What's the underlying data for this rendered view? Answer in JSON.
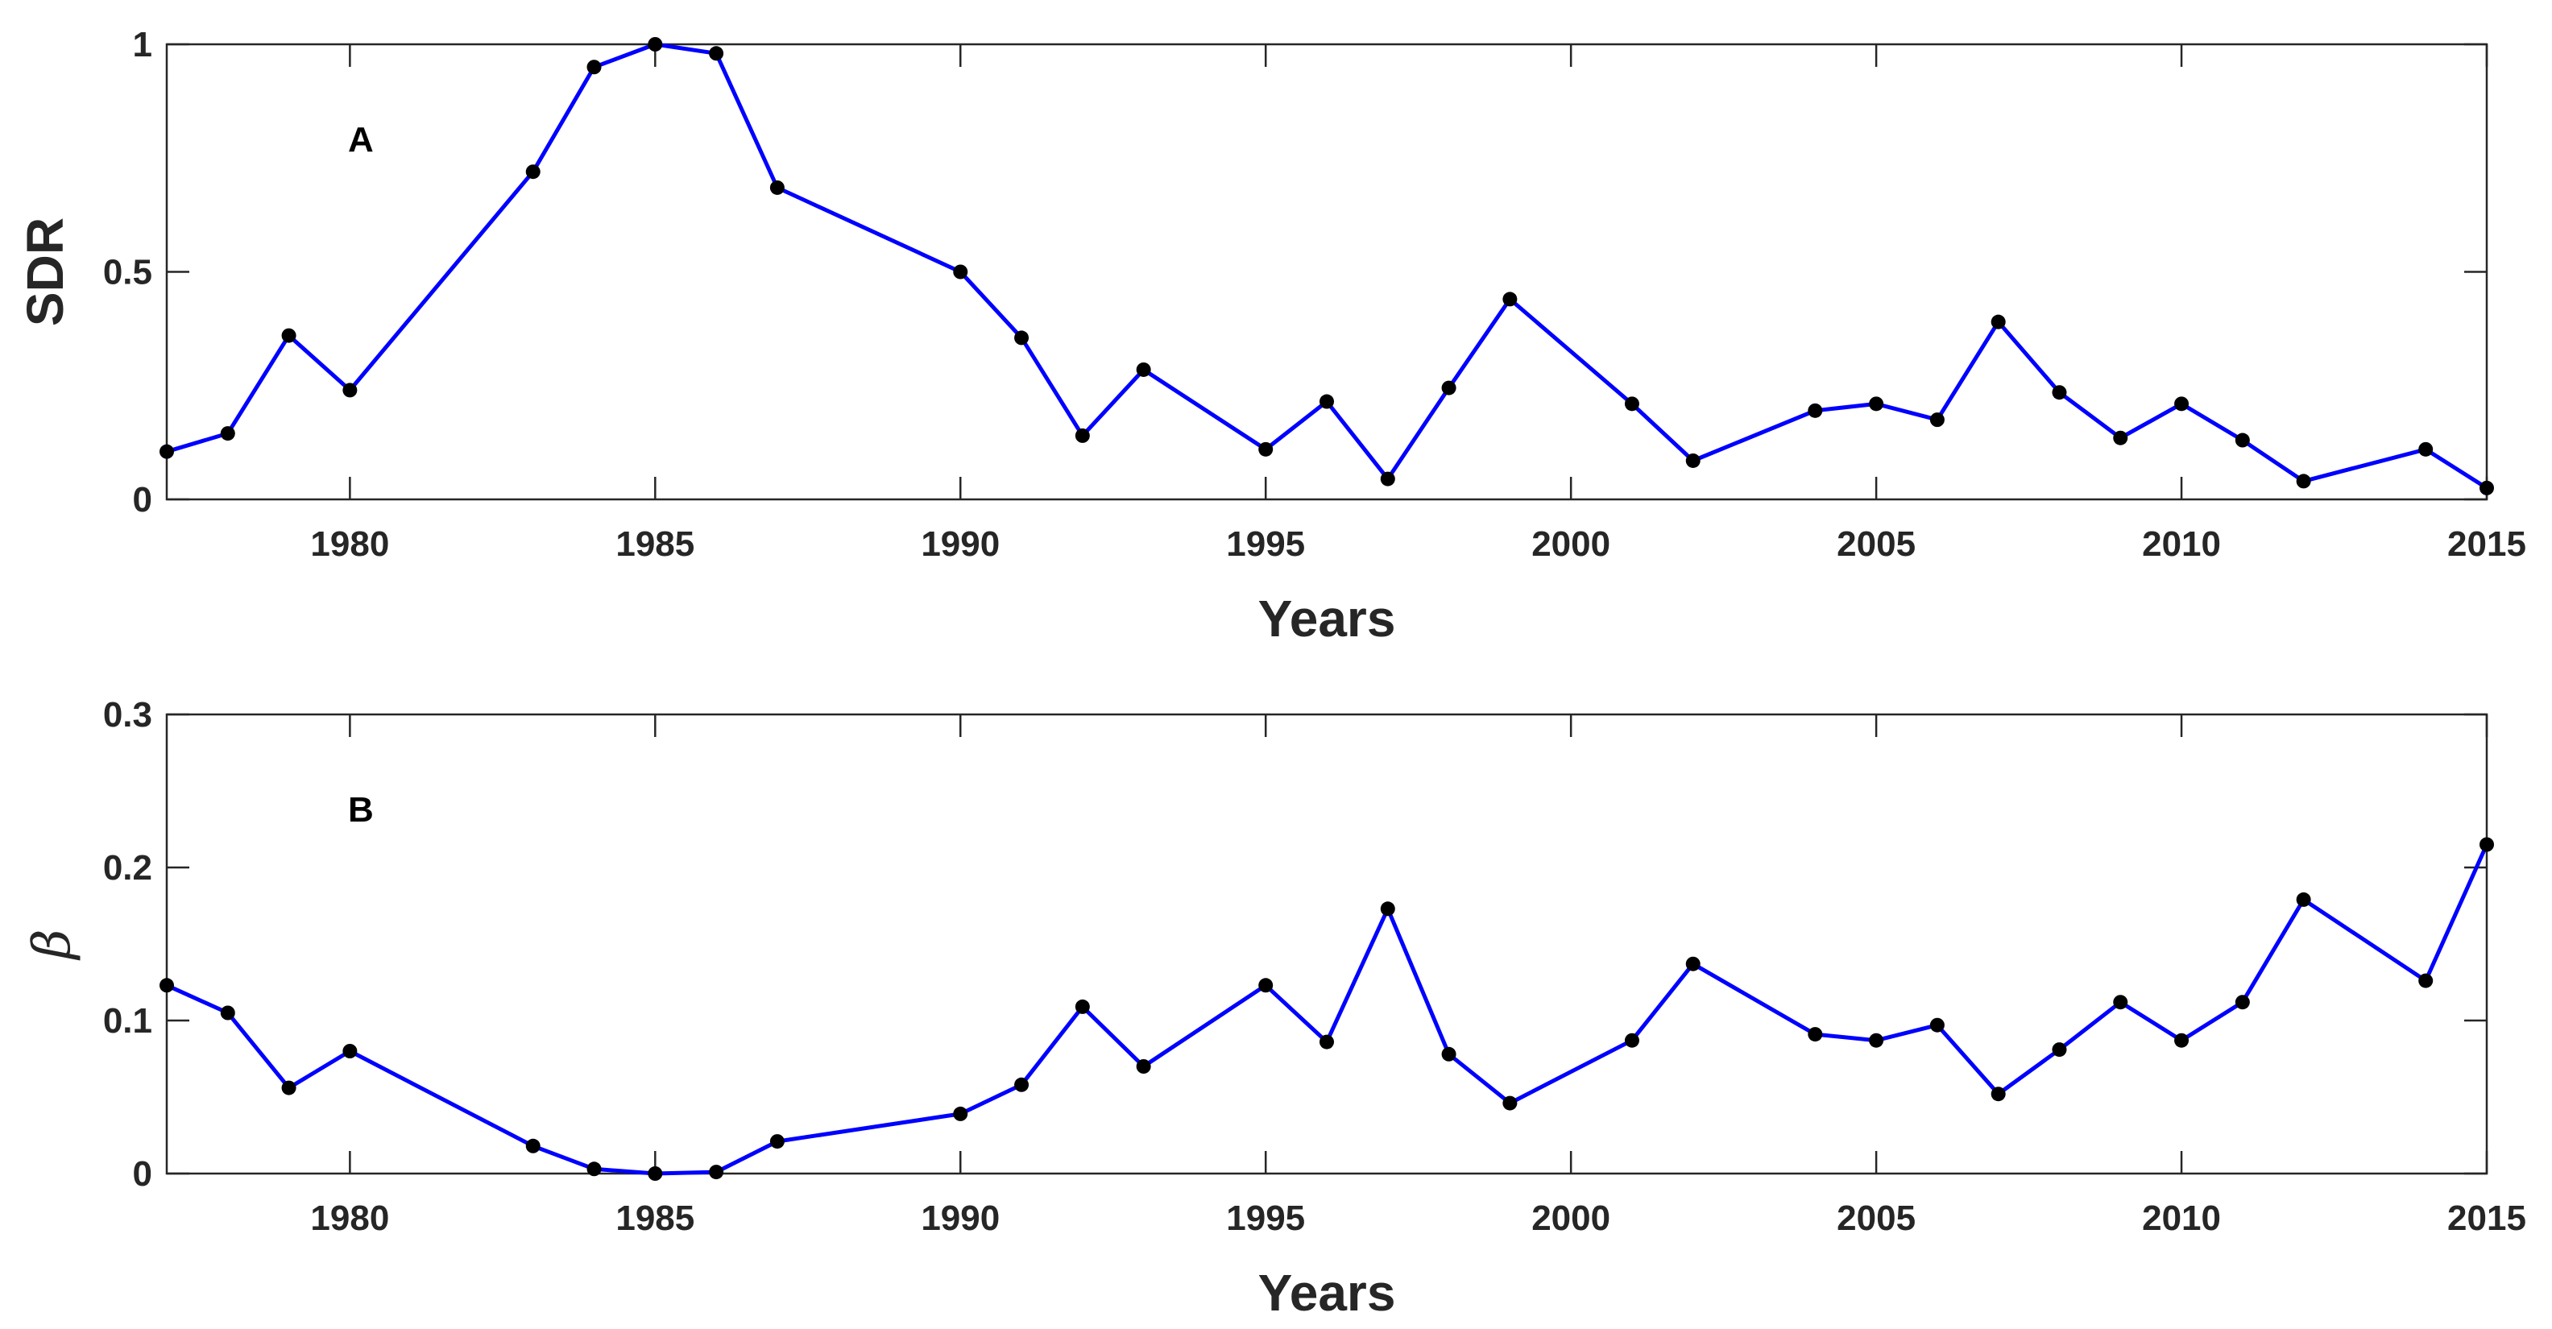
{
  "chart_data": [
    {
      "type": "line",
      "panel_label": "A",
      "xlabel": "Years",
      "ylabel": "SDR",
      "xlim": [
        1977,
        2015
      ],
      "ylim": [
        0,
        1
      ],
      "xticks": [
        1980,
        1985,
        1990,
        1995,
        2000,
        2005,
        2010,
        2015
      ],
      "yticks": [
        0,
        0.5,
        1
      ],
      "ytick_labels": [
        "0",
        "0.5",
        "1"
      ],
      "line_color": "#0000ff",
      "marker_color": "#000000",
      "grid": false,
      "series": [
        {
          "x": [
            1977,
            1978,
            1979,
            1980,
            1983,
            1984,
            1985,
            1986,
            1987,
            1990,
            1991,
            1992,
            1993,
            1995,
            1996,
            1997,
            1998,
            1999,
            2001,
            2002,
            2004,
            2005,
            2006,
            2007,
            2008,
            2009,
            2010,
            2011,
            2012,
            2014,
            2015
          ],
          "values": [
            0.105,
            0.145,
            0.36,
            0.24,
            0.72,
            0.95,
            1.0,
            0.98,
            0.685,
            0.5,
            0.355,
            0.14,
            0.285,
            0.11,
            0.215,
            0.045,
            0.245,
            0.44,
            0.21,
            0.085,
            0.195,
            0.21,
            0.175,
            0.39,
            0.235,
            0.135,
            0.21,
            0.13,
            0.04,
            0.11,
            0.025
          ]
        }
      ]
    },
    {
      "type": "line",
      "panel_label": "B",
      "xlabel": "Years",
      "ylabel": "β",
      "xlim": [
        1977,
        2015
      ],
      "ylim": [
        0,
        0.3
      ],
      "xticks": [
        1980,
        1985,
        1990,
        1995,
        2000,
        2005,
        2010,
        2015
      ],
      "yticks": [
        0,
        0.1,
        0.2,
        0.3
      ],
      "ytick_labels": [
        "0",
        "0.1",
        "0.2",
        "0.3"
      ],
      "line_color": "#0000ff",
      "marker_color": "#000000",
      "grid": false,
      "series": [
        {
          "x": [
            1977,
            1978,
            1979,
            1980,
            1983,
            1984,
            1985,
            1986,
            1987,
            1990,
            1991,
            1992,
            1993,
            1995,
            1996,
            1997,
            1998,
            1999,
            2001,
            2002,
            2004,
            2005,
            2006,
            2007,
            2008,
            2009,
            2010,
            2011,
            2012,
            2014,
            2015
          ],
          "values": [
            0.123,
            0.105,
            0.056,
            0.08,
            0.018,
            0.003,
            0.0,
            0.001,
            0.021,
            0.039,
            0.058,
            0.109,
            0.07,
            0.123,
            0.086,
            0.173,
            0.078,
            0.046,
            0.087,
            0.137,
            0.091,
            0.087,
            0.097,
            0.052,
            0.081,
            0.112,
            0.087,
            0.112,
            0.179,
            0.126,
            0.215
          ]
        }
      ]
    }
  ]
}
